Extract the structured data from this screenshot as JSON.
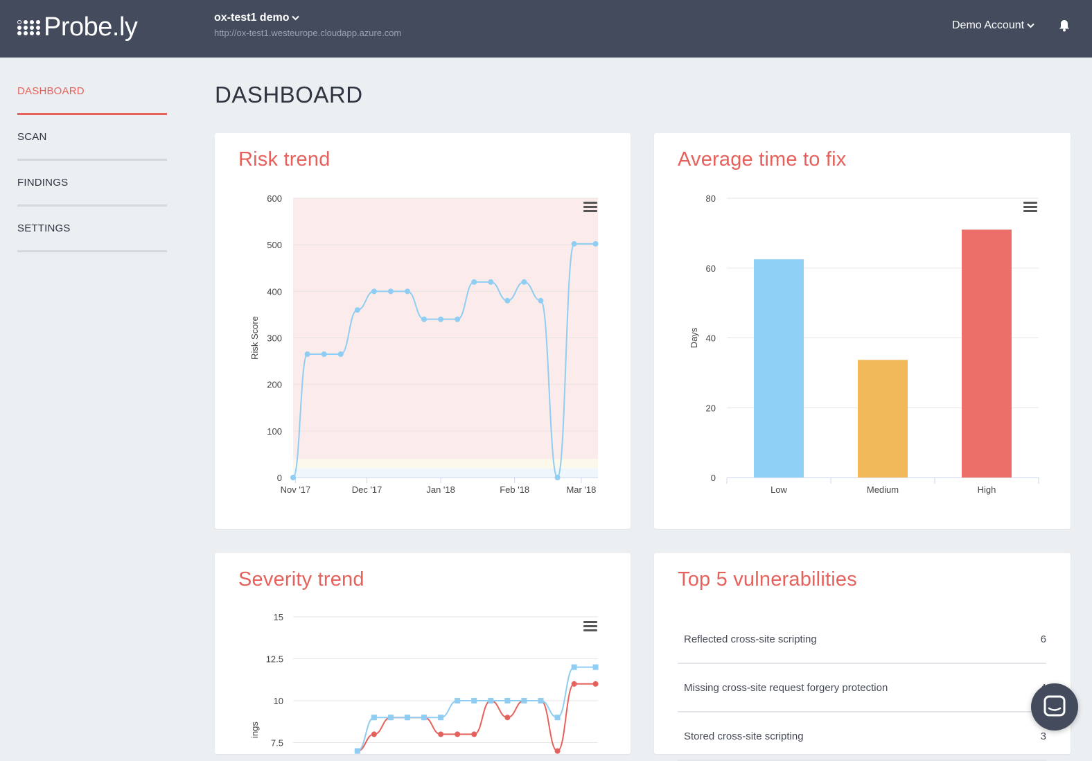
{
  "header": {
    "logo_text": "Probe.ly",
    "project_name": "ox-test1 demo",
    "project_url": "http://ox-test1.westeurope.cloudapp.azure.com",
    "account_label": "Demo Account",
    "icons": {
      "project_dropdown": "chevron-down-icon",
      "account_dropdown": "chevron-down-icon",
      "notifications": "bell-icon"
    }
  },
  "sidebar": {
    "items": [
      {
        "label": "DASHBOARD",
        "active": true
      },
      {
        "label": "SCAN",
        "active": false
      },
      {
        "label": "FINDINGS",
        "active": false
      },
      {
        "label": "SETTINGS",
        "active": false
      }
    ]
  },
  "page": {
    "title": "DASHBOARD"
  },
  "colors": {
    "accent": "#e5625c",
    "header_bg": "#434b5d",
    "low": "#8fd0f7",
    "medium": "#f2b95a",
    "high": "#ec6f69",
    "line_blue": "#8fcdf2"
  },
  "cards": {
    "risk_trend": {
      "title": "Risk trend"
    },
    "avg_time": {
      "title": "Average time to fix"
    },
    "severity_trend": {
      "title": "Severity trend"
    },
    "top5": {
      "title": "Top 5 vulnerabilities"
    }
  },
  "chart_data": [
    {
      "type": "line",
      "title": "Risk trend",
      "ylabel": "Risk Score",
      "ylim": [
        0,
        600
      ],
      "yticks": [
        0,
        100,
        200,
        300,
        400,
        500,
        600
      ],
      "xticks": [
        "Nov '17",
        "Dec '17",
        "Jan '18",
        "Feb '18",
        "Mar '18"
      ],
      "x_start": "2017-10-31",
      "x_end": "2018-03-08",
      "background_band": "red",
      "series": [
        {
          "points": [
            [
              "2017-10-31",
              0
            ],
            [
              "2017-11-06",
              265
            ],
            [
              "2017-11-13",
              265
            ],
            [
              "2017-11-20",
              265
            ],
            [
              "2017-11-27",
              360
            ],
            [
              "2017-12-04",
              400
            ],
            [
              "2017-12-11",
              400
            ],
            [
              "2017-12-18",
              400
            ],
            [
              "2017-12-25",
              340
            ],
            [
              "2018-01-01",
              340
            ],
            [
              "2018-01-08",
              340
            ],
            [
              "2018-01-15",
              420
            ],
            [
              "2018-01-22",
              420
            ],
            [
              "2018-01-29",
              380
            ],
            [
              "2018-02-05",
              420
            ],
            [
              "2018-02-12",
              380
            ],
            [
              "2018-02-19",
              0
            ],
            [
              "2018-02-26",
              502
            ],
            [
              "2018-03-07",
              502
            ]
          ]
        }
      ]
    },
    {
      "type": "bar",
      "title": "Average time to fix",
      "categories": [
        "Low",
        "Medium",
        "High"
      ],
      "values": [
        62.5,
        33.7,
        71
      ],
      "colors": [
        "#8fd0f7",
        "#f2b95a",
        "#ec6f69"
      ],
      "ylabel": "Days",
      "ylim": [
        0,
        80
      ],
      "yticks": [
        0,
        20,
        40,
        60,
        80
      ]
    },
    {
      "type": "line",
      "title": "Severity trend",
      "ylabel": "ings",
      "ylim": [
        0,
        15
      ],
      "yticks": [
        7.5,
        10,
        12.5,
        15
      ],
      "series": [
        {
          "color": "#8fcdf2",
          "marker": "square",
          "points": [
            [
              "2017-11-27",
              7
            ],
            [
              "2017-12-04",
              9
            ],
            [
              "2017-12-11",
              9
            ],
            [
              "2017-12-18",
              9
            ],
            [
              "2017-12-25",
              9
            ],
            [
              "2018-01-01",
              9
            ],
            [
              "2018-01-08",
              10
            ],
            [
              "2018-01-15",
              10
            ],
            [
              "2018-01-22",
              10
            ],
            [
              "2018-01-29",
              10
            ],
            [
              "2018-02-05",
              10
            ],
            [
              "2018-02-12",
              10
            ],
            [
              "2018-02-19",
              9
            ],
            [
              "2018-02-26",
              12
            ],
            [
              "2018-03-07",
              12
            ]
          ]
        },
        {
          "color": "#e5625c",
          "marker": "circle",
          "points": [
            [
              "2017-11-27",
              7
            ],
            [
              "2017-12-04",
              8
            ],
            [
              "2017-12-11",
              9
            ],
            [
              "2017-12-18",
              9
            ],
            [
              "2017-12-25",
              9
            ],
            [
              "2018-01-01",
              8
            ],
            [
              "2018-01-08",
              8
            ],
            [
              "2018-01-15",
              8
            ],
            [
              "2018-01-22",
              10
            ],
            [
              "2018-01-29",
              9
            ],
            [
              "2018-02-05",
              10
            ],
            [
              "2018-02-12",
              10
            ],
            [
              "2018-02-19",
              7
            ],
            [
              "2018-02-26",
              11
            ],
            [
              "2018-03-07",
              11
            ]
          ]
        }
      ]
    }
  ],
  "top5": {
    "items": [
      {
        "name": "Reflected cross-site scripting",
        "count": "6"
      },
      {
        "name": "Missing cross-site request forgery protection",
        "count": "4"
      },
      {
        "name": "Stored cross-site scripting",
        "count": "3"
      }
    ]
  }
}
